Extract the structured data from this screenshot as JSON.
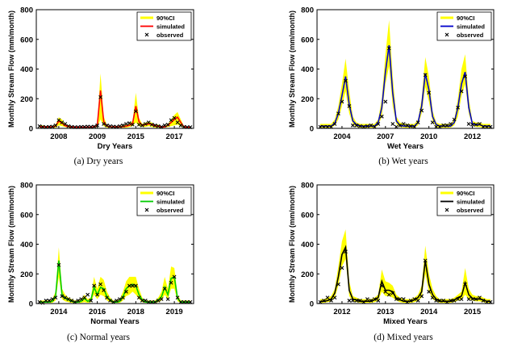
{
  "colors": {
    "ci": "#ffff00",
    "markers": "#000000",
    "axis": "#000000"
  },
  "legend_labels": [
    "90%CI",
    "simulated",
    "observed"
  ],
  "ylabel": "Monthly Stream Flow (mm/month)",
  "chart_data": [
    {
      "type": "line",
      "xlabel": "Dry Years",
      "caption": "(a)  Dry  years",
      "ylabel": "Monthly Stream Flow (mm/month)",
      "ylim": [
        0,
        800
      ],
      "yticks": [
        0,
        200,
        400,
        600,
        800
      ],
      "xticklabels": [
        "2008",
        "2009",
        "2015",
        "2017"
      ],
      "xtick_months": [
        6,
        18,
        30,
        42
      ],
      "n_months": 48,
      "sim_color": "#ff0000",
      "series": [
        {
          "name": "90%CI",
          "upper": [
            20,
            20,
            15,
            15,
            15,
            25,
            75,
            60,
            30,
            20,
            15,
            10,
            10,
            10,
            10,
            10,
            10,
            15,
            30,
            370,
            80,
            20,
            15,
            15,
            15,
            15,
            20,
            25,
            30,
            50,
            240,
            70,
            30,
            40,
            45,
            40,
            25,
            25,
            15,
            15,
            30,
            60,
            90,
            110,
            60,
            15,
            10,
            10
          ],
          "lower": [
            5,
            5,
            5,
            5,
            5,
            5,
            20,
            15,
            10,
            5,
            5,
            5,
            5,
            5,
            5,
            5,
            5,
            5,
            10,
            60,
            15,
            5,
            5,
            5,
            5,
            5,
            5,
            5,
            10,
            15,
            40,
            15,
            10,
            10,
            15,
            10,
            5,
            5,
            5,
            5,
            10,
            15,
            20,
            25,
            15,
            5,
            5,
            5
          ]
        },
        {
          "name": "simulated",
          "values": [
            12,
            12,
            10,
            10,
            10,
            15,
            50,
            35,
            18,
            12,
            10,
            8,
            8,
            8,
            8,
            8,
            8,
            10,
            20,
            255,
            45,
            15,
            10,
            10,
            10,
            10,
            12,
            15,
            20,
            35,
            150,
            45,
            20,
            25,
            30,
            28,
            15,
            15,
            10,
            10,
            20,
            40,
            60,
            75,
            40,
            10,
            8,
            8
          ]
        },
        {
          "name": "observed",
          "values": [
            15,
            10,
            8,
            10,
            12,
            20,
            55,
            40,
            30,
            15,
            10,
            8,
            8,
            10,
            10,
            12,
            10,
            12,
            20,
            210,
            30,
            20,
            15,
            12,
            10,
            15,
            20,
            30,
            35,
            25,
            115,
            25,
            20,
            30,
            40,
            25,
            20,
            15,
            10,
            20,
            25,
            55,
            70,
            40,
            20,
            10,
            8,
            8
          ]
        }
      ]
    },
    {
      "type": "line",
      "xlabel": "Wet Years",
      "caption": "(b)  Wet  years",
      "ylabel": "Monthly Stream Flow (mm/month)",
      "ylim": [
        0,
        800
      ],
      "yticks": [
        0,
        200,
        400,
        600,
        800
      ],
      "xticklabels": [
        "2004",
        "2007",
        "2010",
        "2012"
      ],
      "xtick_months": [
        6,
        18,
        30,
        42
      ],
      "n_months": 48,
      "sim_color": "#0000cc",
      "series": [
        {
          "name": "90%CI",
          "upper": [
            30,
            30,
            30,
            30,
            60,
            150,
            300,
            470,
            250,
            80,
            40,
            30,
            30,
            30,
            30,
            30,
            60,
            200,
            500,
            730,
            350,
            80,
            40,
            30,
            30,
            30,
            30,
            60,
            200,
            480,
            350,
            120,
            40,
            30,
            30,
            30,
            30,
            60,
            200,
            400,
            500,
            200,
            50,
            40,
            40,
            30,
            30,
            30
          ],
          "lower": [
            5,
            5,
            5,
            5,
            20,
            60,
            150,
            250,
            100,
            30,
            10,
            5,
            5,
            5,
            5,
            5,
            20,
            80,
            300,
            420,
            150,
            30,
            10,
            5,
            5,
            5,
            5,
            20,
            100,
            280,
            180,
            50,
            10,
            5,
            5,
            5,
            5,
            20,
            80,
            220,
            300,
            100,
            20,
            10,
            10,
            5,
            5,
            5
          ]
        },
        {
          "name": "simulated",
          "values": [
            15,
            15,
            15,
            15,
            35,
            100,
            220,
            350,
            160,
            50,
            25,
            15,
            15,
            15,
            15,
            15,
            40,
            140,
            380,
            560,
            240,
            50,
            20,
            15,
            15,
            15,
            15,
            40,
            150,
            370,
            260,
            80,
            25,
            15,
            15,
            15,
            15,
            40,
            140,
            300,
            380,
            140,
            30,
            25,
            25,
            15,
            15,
            15
          ]
        },
        {
          "name": "observed",
          "values": [
            10,
            10,
            10,
            10,
            30,
            100,
            180,
            320,
            150,
            20,
            20,
            15,
            10,
            15,
            20,
            10,
            30,
            80,
            180,
            540,
            30,
            10,
            20,
            30,
            20,
            15,
            10,
            40,
            120,
            360,
            240,
            40,
            10,
            10,
            20,
            20,
            30,
            60,
            140,
            250,
            350,
            30,
            25,
            25,
            30,
            10,
            10,
            10
          ]
        }
      ]
    },
    {
      "type": "line",
      "xlabel": "Normal Years",
      "caption": "(c)  Normal  years",
      "ylabel": "Monthly Stream Flow (mm/month)",
      "ylim": [
        0,
        800
      ],
      "yticks": [
        0,
        200,
        400,
        600,
        800
      ],
      "xticklabels": [
        "2014",
        "2016",
        "2018",
        "2019"
      ],
      "xtick_months": [
        6,
        18,
        30,
        42
      ],
      "n_months": 48,
      "sim_color": "#00cc00",
      "series": [
        {
          "name": "90%CI",
          "upper": [
            20,
            20,
            20,
            20,
            30,
            80,
            380,
            100,
            60,
            40,
            30,
            20,
            20,
            30,
            60,
            30,
            40,
            180,
            100,
            180,
            160,
            80,
            40,
            20,
            20,
            30,
            80,
            150,
            180,
            180,
            180,
            100,
            40,
            20,
            20,
            20,
            20,
            40,
            80,
            180,
            100,
            250,
            240,
            60,
            20,
            20,
            20,
            20
          ],
          "lower": [
            5,
            5,
            5,
            5,
            5,
            20,
            180,
            30,
            15,
            10,
            5,
            5,
            5,
            5,
            10,
            5,
            10,
            60,
            30,
            60,
            50,
            20,
            10,
            5,
            5,
            5,
            20,
            50,
            60,
            80,
            60,
            30,
            10,
            5,
            5,
            5,
            5,
            10,
            20,
            60,
            30,
            100,
            100,
            15,
            5,
            5,
            5,
            5
          ]
        },
        {
          "name": "simulated",
          "values": [
            10,
            10,
            10,
            10,
            15,
            50,
            290,
            60,
            35,
            25,
            15,
            10,
            10,
            15,
            35,
            15,
            25,
            110,
            60,
            110,
            100,
            45,
            25,
            10,
            10,
            15,
            45,
            100,
            120,
            130,
            120,
            60,
            25,
            10,
            10,
            10,
            10,
            25,
            45,
            110,
            60,
            170,
            180,
            35,
            10,
            10,
            10,
            10
          ]
        },
        {
          "name": "observed",
          "values": [
            10,
            5,
            20,
            20,
            30,
            40,
            260,
            50,
            40,
            30,
            20,
            10,
            20,
            30,
            40,
            60,
            20,
            120,
            60,
            130,
            90,
            40,
            20,
            10,
            20,
            30,
            40,
            80,
            120,
            120,
            120,
            40,
            20,
            20,
            10,
            10,
            10,
            20,
            30,
            100,
            30,
            140,
            180,
            40,
            10,
            10,
            10,
            10
          ]
        }
      ]
    },
    {
      "type": "line",
      "xlabel": "Mixed Years",
      "caption": "(d)  Mixed  years",
      "ylabel": "Monthly Stream Flow (mm/month)",
      "ylim": [
        0,
        800
      ],
      "yticks": [
        0,
        200,
        400,
        600,
        800
      ],
      "xticklabels": [
        "2012",
        "2013",
        "2014",
        "2015"
      ],
      "xtick_months": [
        6,
        18,
        30,
        42
      ],
      "n_months": 48,
      "sim_color": "#000000",
      "series": [
        {
          "name": "90%CI",
          "upper": [
            30,
            30,
            40,
            50,
            100,
            250,
            420,
            500,
            150,
            50,
            40,
            30,
            30,
            30,
            30,
            40,
            60,
            230,
            150,
            140,
            120,
            60,
            40,
            30,
            30,
            30,
            40,
            60,
            120,
            390,
            200,
            100,
            50,
            30,
            30,
            30,
            30,
            40,
            60,
            80,
            240,
            100,
            60,
            50,
            50,
            40,
            30,
            30
          ],
          "lower": [
            5,
            5,
            10,
            15,
            40,
            120,
            250,
            300,
            50,
            15,
            10,
            5,
            5,
            5,
            5,
            10,
            20,
            80,
            50,
            50,
            40,
            20,
            10,
            5,
            5,
            5,
            10,
            20,
            40,
            200,
            80,
            30,
            15,
            5,
            5,
            5,
            5,
            10,
            20,
            25,
            60,
            30,
            20,
            15,
            15,
            10,
            5,
            5
          ]
        },
        {
          "name": "simulated",
          "values": [
            15,
            15,
            20,
            30,
            70,
            180,
            330,
            380,
            90,
            30,
            25,
            15,
            15,
            15,
            15,
            25,
            40,
            150,
            90,
            90,
            80,
            35,
            25,
            15,
            15,
            15,
            25,
            40,
            80,
            290,
            130,
            60,
            30,
            15,
            15,
            15,
            15,
            25,
            40,
            50,
            140,
            60,
            35,
            30,
            30,
            25,
            15,
            15
          ]
        },
        {
          "name": "observed",
          "values": [
            10,
            20,
            40,
            20,
            40,
            130,
            240,
            350,
            20,
            20,
            20,
            20,
            10,
            30,
            20,
            30,
            20,
            120,
            80,
            60,
            70,
            30,
            30,
            30,
            10,
            20,
            30,
            20,
            50,
            290,
            80,
            40,
            20,
            20,
            20,
            10,
            20,
            20,
            30,
            30,
            130,
            30,
            30,
            30,
            40,
            20,
            10,
            10
          ]
        }
      ]
    }
  ]
}
